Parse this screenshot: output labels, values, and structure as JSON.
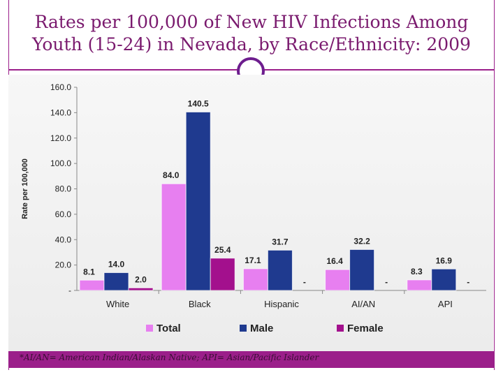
{
  "slide": {
    "title_line1": "Rates per 100,000  of New HIV Infections Among",
    "title_line2": "Youth (15-24) in Nevada, by Race/Ethnicity: 2009",
    "footnote": "*AI/AN= American Indian/Alaskan Native; API= Asian/Pacific Islander"
  },
  "colors": {
    "total": "#e77ff0",
    "male": "#1f3a8f",
    "female": "#a3108d",
    "accent": "#9b1f8a"
  },
  "chart_data": {
    "type": "bar",
    "title": "Rates per 100,000  of New HIV Infections Among Youth (15-24) in Nevada, by Race/Ethnicity: 2009",
    "ylabel": "Rate per 100,000",
    "xlabel": "",
    "ylim": [
      0,
      160
    ],
    "yticks": [
      0,
      20,
      40,
      60,
      80,
      100,
      120,
      140,
      160
    ],
    "ytick_labels": [
      "-",
      "20.0",
      "40.0",
      "60.0",
      "80.0",
      "100.0",
      "120.0",
      "140.0",
      "160.0"
    ],
    "categories": [
      "White",
      "Black",
      "Hispanic",
      "AI/AN",
      "API"
    ],
    "series": [
      {
        "name": "Total",
        "values": [
          8.1,
          84.0,
          17.1,
          16.4,
          8.3
        ],
        "labels": [
          "8.1",
          "84.0",
          "17.1",
          "16.4",
          "8.3"
        ]
      },
      {
        "name": "Male",
        "values": [
          14.0,
          140.5,
          31.7,
          32.2,
          16.9
        ],
        "labels": [
          "14.0",
          "140.5",
          "31.7",
          "32.2",
          "16.9"
        ]
      },
      {
        "name": "Female",
        "values": [
          2.0,
          25.4,
          null,
          null,
          null
        ],
        "labels": [
          "2.0",
          "25.4",
          "-",
          "-",
          "-"
        ]
      }
    ],
    "legend": "bottom",
    "grid": false
  }
}
